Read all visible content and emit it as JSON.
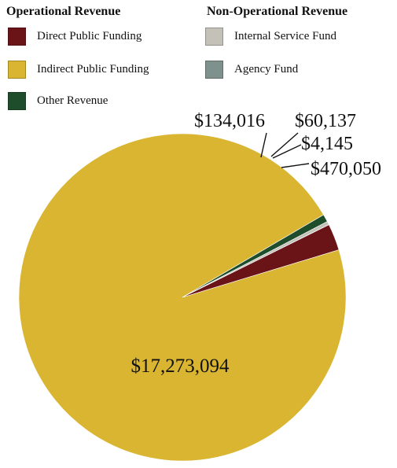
{
  "legend": {
    "operational_title": "Operational Revenue",
    "non_operational_title": "Non-Operational Revenue",
    "items": [
      {
        "label": "Direct Public Funding",
        "color": "#6b1418"
      },
      {
        "label": "Indirect Public Funding",
        "color": "#d9b531"
      },
      {
        "label": "Other Revenue",
        "color": "#1e4d2b"
      },
      {
        "label": "Internal Service Fund",
        "color": "#c4c2b8"
      },
      {
        "label": "Agency Fund",
        "color": "#7f918d"
      }
    ]
  },
  "chart_data": {
    "type": "pie",
    "slices": [
      {
        "category": "Indirect Public Funding",
        "value": 17273094,
        "label": "$17,273,094",
        "color": "#d9b531"
      },
      {
        "category": "Other Revenue",
        "value": 134016,
        "label": "$134,016",
        "color": "#1e4d2b"
      },
      {
        "category": "Internal Service Fund",
        "value": 60137,
        "label": "$60,137",
        "color": "#c4c2b8"
      },
      {
        "category": "Agency Fund",
        "value": 4145,
        "label": "$4,145",
        "color": "#7f918d"
      },
      {
        "category": "Direct Public Funding",
        "value": 470050,
        "label": "$470,050",
        "color": "#6b1418"
      }
    ]
  }
}
